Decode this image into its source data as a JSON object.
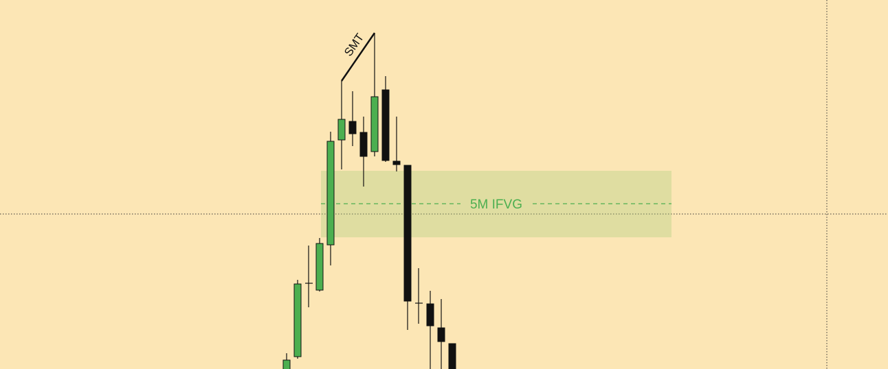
{
  "annotations": {
    "divergence": "SMT",
    "zone": "5M IFVG"
  }
}
